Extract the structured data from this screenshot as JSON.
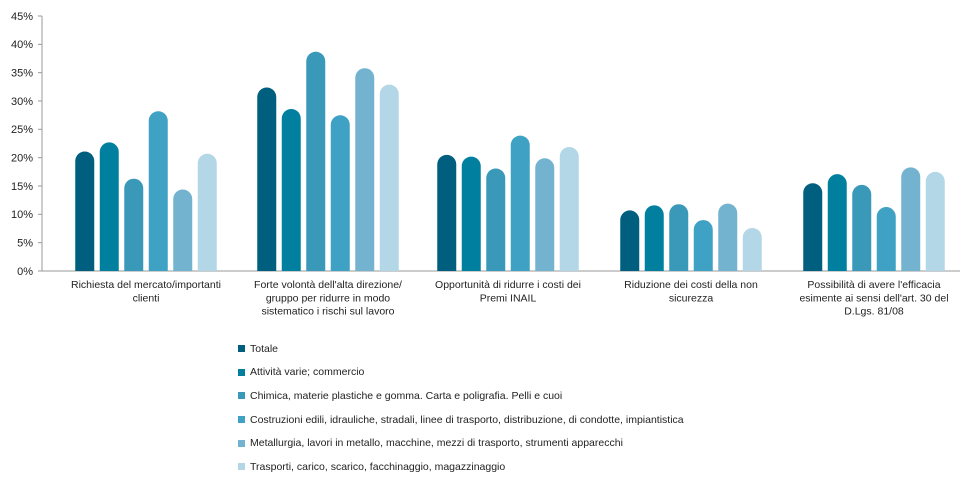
{
  "chart_data": {
    "type": "bar",
    "title": "",
    "xlabel": "",
    "ylabel": "",
    "ylim": [
      0,
      45
    ],
    "yticks": [
      "0%",
      "5%",
      "10%",
      "15%",
      "20%",
      "25%",
      "30%",
      "35%",
      "40%",
      "45%"
    ],
    "grid": false,
    "legend_position": "bottom",
    "categories": [
      [
        "Richiesta del mercato/importanti",
        "clienti"
      ],
      [
        "Forte volontà dell'alta direzione/",
        "gruppo per ridurre in modo",
        "sistematico i rischi sul lavoro"
      ],
      [
        "Opportunità di ridurre i costi dei",
        "Premi INAIL"
      ],
      [
        "Riduzione dei costi della non",
        "sicurezza"
      ],
      [
        "Possibilità di avere l'efficacia",
        "esimente ai sensi dell'art. 30 del",
        "D.Lgs. 81/08"
      ]
    ],
    "series": [
      {
        "name": "Totale",
        "color": "#005e7e",
        "values": [
          21,
          32.3,
          20.4,
          10.6,
          15.4
        ]
      },
      {
        "name": "Attività varie; commercio",
        "color": "#00809e",
        "values": [
          22.6,
          28.5,
          20.1,
          11.5,
          17
        ]
      },
      {
        "name": "Chimica, materie plastiche e gomma. Carta e poligrafia. Pelli e cuoi",
        "color": "#3a99b8",
        "values": [
          16.2,
          38.6,
          18,
          11.7,
          15.1
        ]
      },
      {
        "name": "Costruzioni edili, idrauliche, stradali, linee di trasporto, distribuzione, di condotte, impiantistica",
        "color": "#3fa2c4",
        "values": [
          28.1,
          27.4,
          23.8,
          8.9,
          11.2
        ]
      },
      {
        "name": "Metallurgia, lavori in metallo, macchine, mezzi di trasporto, strumenti apparecchi",
        "color": "#74b3d0",
        "values": [
          14.3,
          35.7,
          19.8,
          11.8,
          18.2
        ]
      },
      {
        "name": "Trasporti, carico, scarico, facchinaggio, magazzinaggio",
        "color": "#b3d7e6",
        "values": [
          20.6,
          32.8,
          21.8,
          7.5,
          17.4
        ]
      }
    ]
  }
}
